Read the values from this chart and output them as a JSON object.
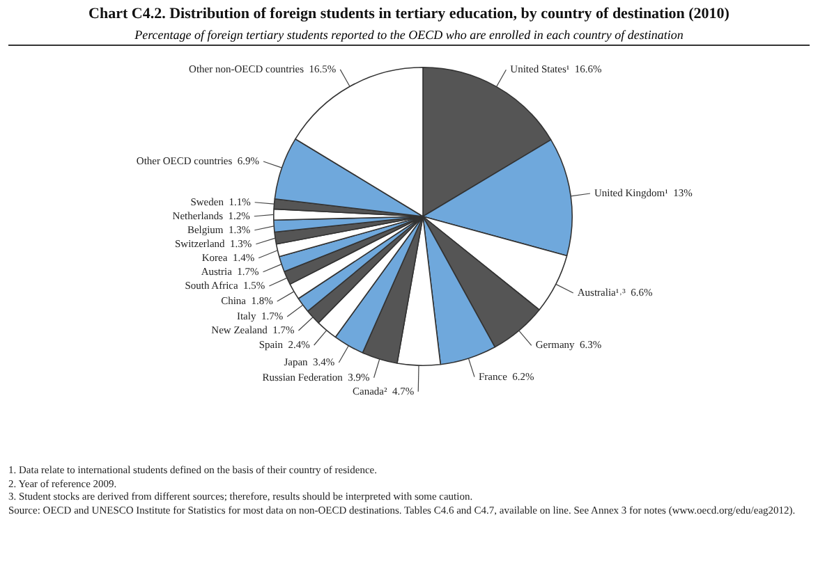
{
  "chart_data": {
    "type": "pie",
    "title": "Chart C4.2.  Distribution of foreign students in tertiary education, by country of destination (2010)",
    "subtitle": "Percentage of foreign tertiary students reported to the OECD who are enrolled in each country of destination",
    "categories": [
      "United States¹",
      "United Kingdom¹",
      "Australia¹˒³",
      "Germany",
      "France",
      "Canada²",
      "Russian Federation",
      "Japan",
      "Spain",
      "New Zealand",
      "Italy",
      "China",
      "South Africa",
      "Austria",
      "Korea",
      "Switzerland",
      "Belgium",
      "Netherlands",
      "Sweden",
      "Other OECD countries",
      "Other non-OECD countries"
    ],
    "values": [
      16.6,
      13,
      6.6,
      6.3,
      6.2,
      4.7,
      3.9,
      3.4,
      2.4,
      1.7,
      1.7,
      1.8,
      1.5,
      1.7,
      1.4,
      1.3,
      1.3,
      1.2,
      1.1,
      6.9,
      16.5
    ],
    "value_labels": [
      "16.6%",
      "13%",
      "6.6%",
      "6.3%",
      "6.2%",
      "4.7%",
      "3.9%",
      "3.4%",
      "2.4%",
      "1.7%",
      "1.7%",
      "1.8%",
      "1.5%",
      "1.7%",
      "1.4%",
      "1.3%",
      "1.3%",
      "1.2%",
      "1.1%",
      "6.9%",
      "16.5%"
    ],
    "colors": [
      "#555555",
      "#6fa8dc",
      "#ffffff",
      "#555555",
      "#6fa8dc",
      "#ffffff",
      "#555555",
      "#6fa8dc",
      "#ffffff",
      "#555555",
      "#6fa8dc",
      "#ffffff",
      "#555555",
      "#6fa8dc",
      "#ffffff",
      "#555555",
      "#6fa8dc",
      "#ffffff",
      "#555555",
      "#6fa8dc",
      "#ffffff"
    ],
    "legend": false,
    "annotations": [
      "1. Data relate to international students defined on the basis of their country of residence.",
      "2. Year of reference 2009.",
      "3. Student stocks are derived from different sources; therefore, results should be interpreted with some caution.",
      "Source: OECD and UNESCO Institute for Statistics for most data on non-OECD destinations. Tables C4.6 and C4.7, available on line. See Annex 3 for notes (www.oecd.org/edu/eag2012)."
    ]
  }
}
